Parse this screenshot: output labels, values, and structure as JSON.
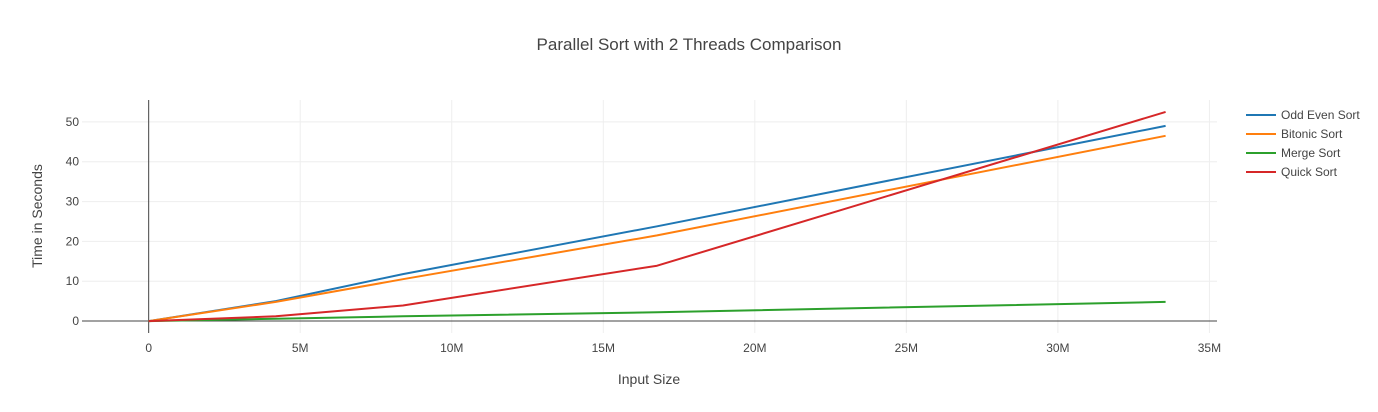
{
  "chart_data": {
    "type": "line",
    "title": "Parallel Sort with 2 Threads Comparison",
    "xlabel": "Input Size",
    "ylabel": "Time in Seconds",
    "xlim": [
      -2200000,
      35250000
    ],
    "ylim": [
      -3,
      55.5
    ],
    "x_ticks": [
      0,
      5000000,
      10000000,
      15000000,
      20000000,
      25000000,
      30000000,
      35000000
    ],
    "x_tick_labels": [
      "0",
      "5M",
      "10M",
      "15M",
      "20M",
      "25M",
      "30M",
      "35M"
    ],
    "y_ticks": [
      0,
      10,
      20,
      30,
      40,
      50
    ],
    "y_tick_labels": [
      "0",
      "10",
      "20",
      "30",
      "40",
      "50"
    ],
    "grid": true,
    "legend_position": "top-right",
    "x": [
      0,
      4194304,
      8388608,
      16777216,
      33554432
    ],
    "series": [
      {
        "name": "Odd Even Sort",
        "color": "#1f77b4",
        "values": [
          0,
          5.0,
          11.8,
          23.8,
          49.0
        ]
      },
      {
        "name": "Bitonic Sort",
        "color": "#ff7f0e",
        "values": [
          0,
          4.8,
          10.5,
          21.5,
          46.5
        ]
      },
      {
        "name": "Merge Sort",
        "color": "#2ca02c",
        "values": [
          0,
          0.6,
          1.2,
          2.2,
          4.8
        ]
      },
      {
        "name": "Quick Sort",
        "color": "#d62728",
        "values": [
          0,
          1.2,
          3.9,
          13.9,
          52.5
        ]
      }
    ]
  }
}
